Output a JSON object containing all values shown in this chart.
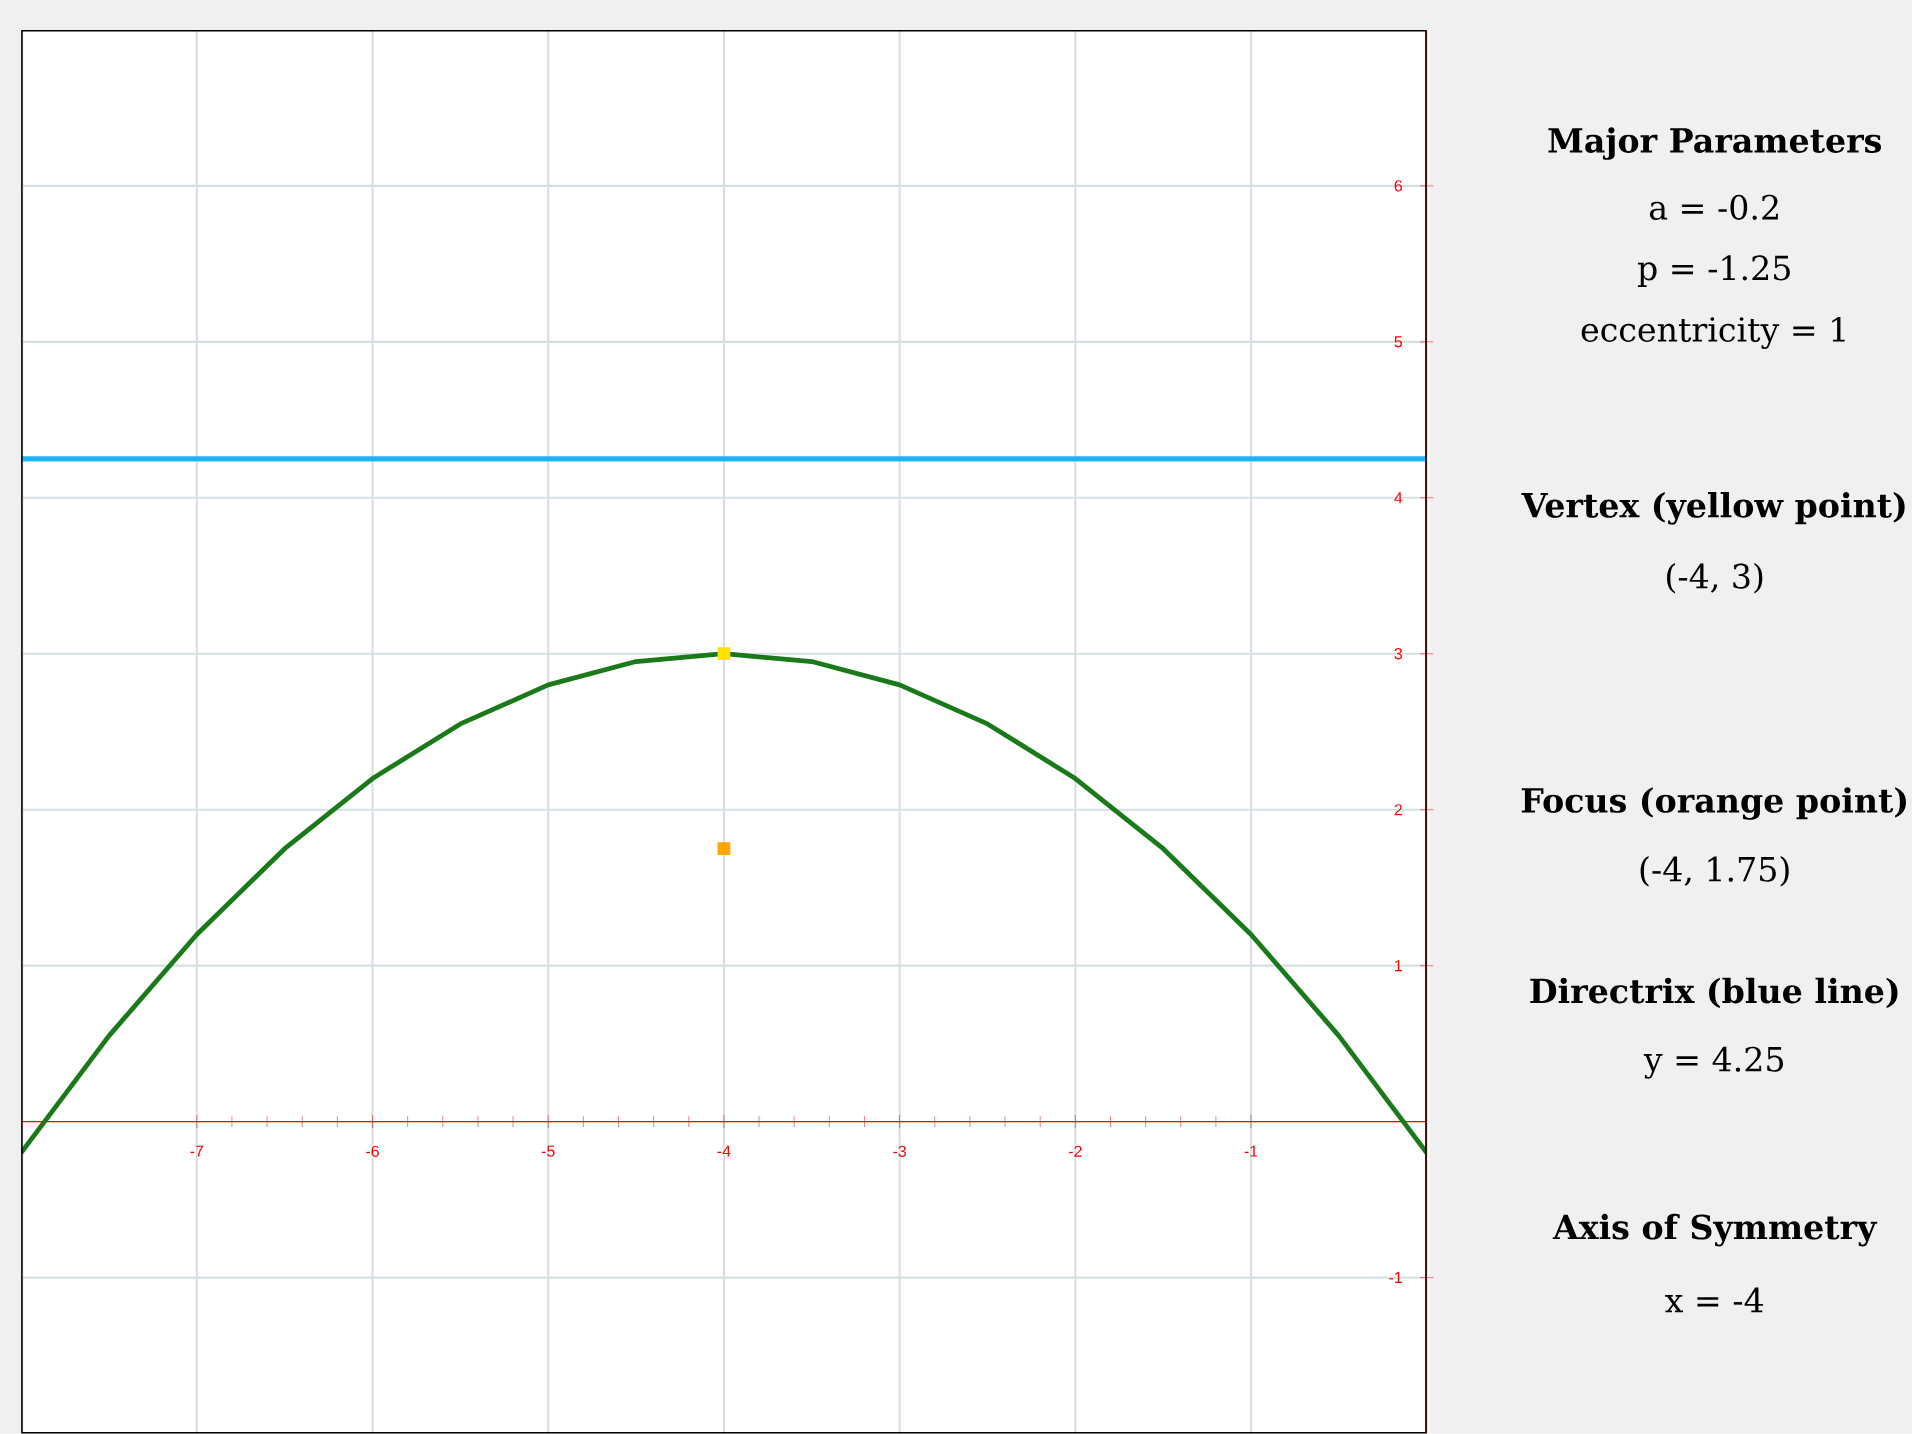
{
  "chart_data": {
    "type": "line",
    "x": [
      -8,
      -7.5,
      -7,
      -6.5,
      -6,
      -5.5,
      -5,
      -4.5,
      -4,
      -3.5,
      -3,
      -2.5,
      -2,
      -1.5,
      -1,
      -0.5,
      0
    ],
    "series": [
      {
        "color": "#1a7a1a",
        "values": [
          -0.2,
          0.55,
          1.2,
          1.75,
          2.2,
          2.55,
          2.8,
          2.95,
          3,
          2.95,
          2.8,
          2.55,
          2.2,
          1.75,
          1.2,
          0.55,
          -0.2
        ]
      },
      {
        "type": "scatter",
        "color": "#ffe000",
        "x": [
          -4
        ],
        "values": [
          3
        ],
        "marker": "square"
      },
      {
        "type": "scatter",
        "color": "#ffa500",
        "x": [
          -4
        ],
        "values": [
          1.75
        ],
        "marker": "square"
      }
    ],
    "xlim": [
      -8,
      0
    ],
    "ylim": [
      -2,
      7
    ],
    "xticks": [
      -7,
      -6,
      -5,
      -4,
      -3,
      -2,
      -1
    ],
    "yticks": [
      -1,
      1,
      2,
      3,
      4,
      5,
      6
    ],
    "grid": true,
    "ref_lines": [
      {
        "axis": "y",
        "value": 4.25,
        "color": "#1eb4f0"
      }
    ],
    "annotations": [
      "Major Parameters",
      "a  =  -0.2",
      "p  =  -1.25",
      "eccentricity  =  1",
      "Vertex (yellow point)",
      "(-4, 3)",
      "Focus (orange point)",
      "(-4, 1.75)",
      "Directrix (blue line)",
      "y  =  4.25",
      "Axis of Symmetry",
      "x  =  -4"
    ]
  }
}
